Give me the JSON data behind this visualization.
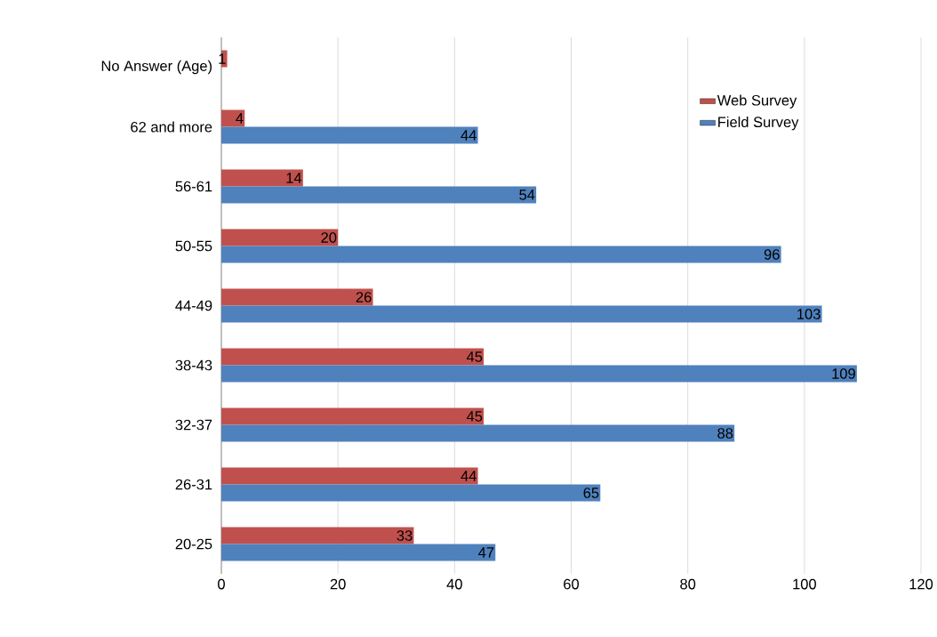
{
  "chart_data": {
    "type": "bar",
    "orientation": "horizontal",
    "categories": [
      "No Answer (Age)",
      "62 and more",
      "56-61",
      "50-55",
      "44-49",
      "38-43",
      "32-37",
      "26-31",
      "20-25"
    ],
    "series": [
      {
        "name": "Web Survey",
        "color": "#c0504d",
        "values": [
          1,
          4,
          14,
          20,
          26,
          45,
          45,
          44,
          33
        ]
      },
      {
        "name": "Field Survey",
        "color": "#4f81bd",
        "values": [
          null,
          44,
          54,
          96,
          103,
          109,
          88,
          65,
          47
        ]
      }
    ],
    "xlim": [
      0,
      120
    ],
    "xticks": [
      0,
      20,
      40,
      60,
      80,
      100,
      120
    ],
    "data_labels": true,
    "grid": "x",
    "legend": "top right"
  }
}
